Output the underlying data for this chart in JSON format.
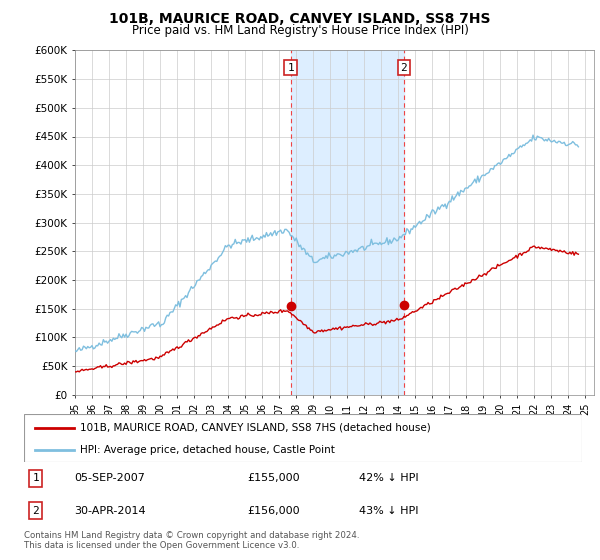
{
  "title": "101B, MAURICE ROAD, CANVEY ISLAND, SS8 7HS",
  "subtitle": "Price paid vs. HM Land Registry's House Price Index (HPI)",
  "ylabel_ticks": [
    "£0",
    "£50K",
    "£100K",
    "£150K",
    "£200K",
    "£250K",
    "£300K",
    "£350K",
    "£400K",
    "£450K",
    "£500K",
    "£550K",
    "£600K"
  ],
  "ytick_values": [
    0,
    50000,
    100000,
    150000,
    200000,
    250000,
    300000,
    350000,
    400000,
    450000,
    500000,
    550000,
    600000
  ],
  "hpi_color": "#7fbfdf",
  "price_color": "#cc0000",
  "marker1_label": "1",
  "marker2_label": "2",
  "marker1_date_x": 2007.67,
  "marker2_date_x": 2014.33,
  "sale1_date": "05-SEP-2007",
  "sale1_price": "£155,000",
  "sale1_hpi": "42% ↓ HPI",
  "sale2_date": "30-APR-2014",
  "sale2_price": "£156,000",
  "sale2_hpi": "43% ↓ HPI",
  "sale1_price_val": 155000,
  "sale2_price_val": 156000,
  "legend_label1": "101B, MAURICE ROAD, CANVEY ISLAND, SS8 7HS (detached house)",
  "legend_label2": "HPI: Average price, detached house, Castle Point",
  "footnote1": "Contains HM Land Registry data © Crown copyright and database right 2024.",
  "footnote2": "This data is licensed under the Open Government Licence v3.0.",
  "bg_highlight_color": "#ddeeff",
  "xlim_min": 1995,
  "xlim_max": 2025.5,
  "ylim_min": 0,
  "ylim_max": 600000,
  "xtick_years": [
    1995,
    1996,
    1997,
    1998,
    1999,
    2000,
    2001,
    2002,
    2003,
    2004,
    2005,
    2006,
    2007,
    2008,
    2009,
    2010,
    2011,
    2012,
    2013,
    2014,
    2015,
    2016,
    2017,
    2018,
    2019,
    2020,
    2021,
    2022,
    2023,
    2024,
    2025
  ]
}
